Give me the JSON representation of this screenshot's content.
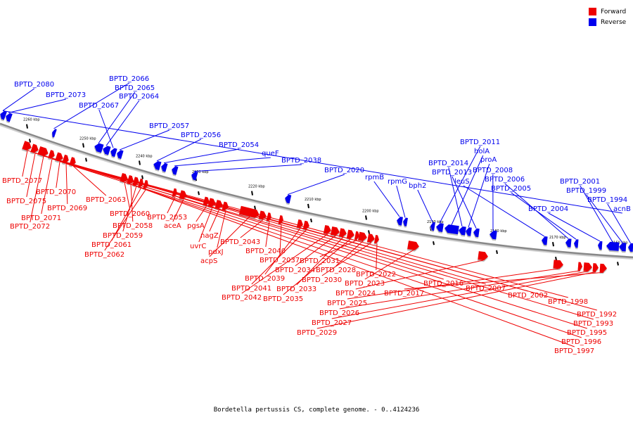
{
  "caption": "Bordetella pertussis CS, complete genome. - 0..4124236",
  "legend": {
    "forward_label": "Forward",
    "reverse_label": "Reverse",
    "forward_color": "#ee0000",
    "reverse_color": "#0000ee"
  },
  "axis": {
    "unit": "kbp",
    "ticks": [
      "2260 kbp",
      "2250 kbp",
      "2240 kbp",
      "2230 kbp",
      "2220 kbp",
      "2210 kbp",
      "2200 kbp",
      "2190 kbp",
      "2180 kbp",
      "2170 kbp",
      "2160 kbp"
    ]
  },
  "genes": {
    "forward": [
      "BPTD_2077",
      "BPTD_2075",
      "BPTD_2072",
      "BPTD_2071",
      "BPTD_2070",
      "BPTD_2069",
      "BPTD_2063",
      "BPTD_2060",
      "BPTD_2058",
      "BPTD_2059",
      "BPTD_2061",
      "BPTD_2062",
      "BPTD_2053",
      "aceA",
      "pgsA",
      "uvrC",
      "nagZ",
      "pdxJ",
      "acpS",
      "BPTD_2043",
      "BPTD_2040",
      "BPTD_2037",
      "BPTD_2039",
      "BPTD_2041",
      "BPTD_2042",
      "BPTD_2034",
      "BPTD_2033",
      "BPTD_2035",
      "BPTD_2031",
      "BPTD_2028",
      "BPTD_2030",
      "BPTD_2022",
      "BPTD_2023",
      "BPTD_2024",
      "BPTD_2025",
      "BPTD_2026",
      "BPTD_2027",
      "BPTD_2029",
      "BPTD_2017",
      "BPTD_2016",
      "BPTD_2007",
      "BPTD_2002",
      "BPTD_1998",
      "BPTD_1992",
      "BPTD_1993",
      "BPTD_1995",
      "BPTD_1996",
      "BPTD_1997"
    ],
    "reverse": [
      "BPTD_2080",
      "BPTD_2073",
      "BPTD_2066",
      "BPTD_2065",
      "BPTD_2064",
      "BPTD_2067",
      "BPTD_2057",
      "BPTD_2056",
      "BPTD_2054",
      "queF",
      "BPTD_2038",
      "BPTD_2020",
      "rpmB",
      "rpmG",
      "bph2",
      "BPTD_2011",
      "holA",
      "BPTD_2014",
      "proA",
      "BPTD_2013",
      "BPTD_2008",
      "leuS",
      "BPTD_2006",
      "BPTD_2005",
      "BPTD_2004",
      "BPTD_2001",
      "BPTD_1999",
      "BPTD_1994",
      "acnB"
    ]
  }
}
